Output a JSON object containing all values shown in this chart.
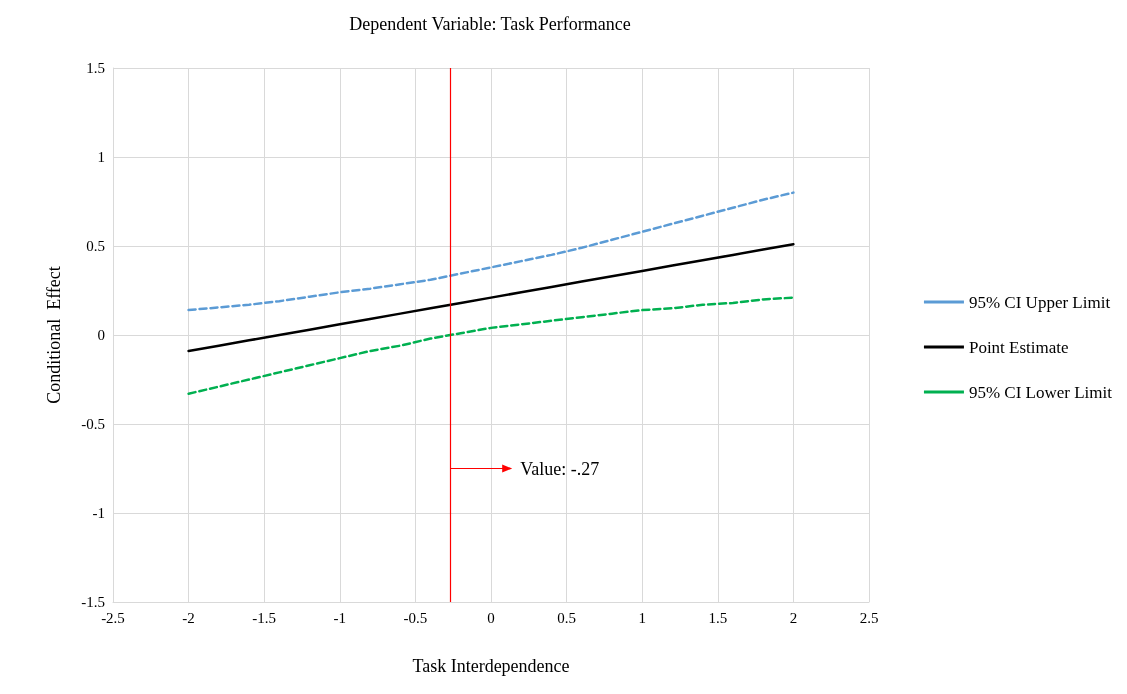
{
  "chart_data": {
    "type": "line",
    "title": "Dependent Variable: Task Performance",
    "xlabel": "Task Interdependence",
    "ylabel": "Conditional  Effect",
    "x": [
      -2,
      -1.8,
      -1.6,
      -1.4,
      -1.2,
      -1,
      -0.8,
      -0.6,
      -0.4,
      -0.2,
      0,
      0.2,
      0.4,
      0.6,
      0.8,
      1,
      1.2,
      1.4,
      1.6,
      1.8,
      2
    ],
    "series": [
      {
        "name": "95% CI Upper Limit",
        "color": "#5b9bd5",
        "line_style": "dashed",
        "values": [
          0.14,
          0.155,
          0.17,
          0.19,
          0.215,
          0.24,
          0.26,
          0.285,
          0.31,
          0.345,
          0.38,
          0.415,
          0.45,
          0.49,
          0.535,
          0.58,
          0.625,
          0.67,
          0.715,
          0.76,
          0.8
        ]
      },
      {
        "name": "Point Estimate",
        "color": "#000000",
        "line_style": "solid",
        "values": [
          -0.09,
          -0.06,
          -0.03,
          0,
          0.03,
          0.06,
          0.09,
          0.12,
          0.15,
          0.18,
          0.21,
          0.24,
          0.27,
          0.3,
          0.33,
          0.36,
          0.39,
          0.42,
          0.45,
          0.48,
          0.51
        ]
      },
      {
        "name": "95% CI Lower Limit",
        "color": "#00b050",
        "line_style": "dashed",
        "values": [
          -0.33,
          -0.29,
          -0.25,
          -0.21,
          -0.17,
          -0.13,
          -0.09,
          -0.06,
          -0.02,
          0.01,
          0.04,
          0.06,
          0.08,
          0.1,
          0.12,
          0.14,
          0.15,
          0.17,
          0.18,
          0.2,
          0.21
        ]
      }
    ],
    "xlim": [
      -2.5,
      2.5
    ],
    "xticks": [
      -2.5,
      -2,
      -1.5,
      -1,
      -0.5,
      0,
      0.5,
      1,
      1.5,
      2,
      2.5
    ],
    "ylim": [
      -1.5,
      1.5
    ],
    "yticks": [
      -1.5,
      -1,
      -0.5,
      0,
      0.5,
      1,
      1.5
    ],
    "ref_lines": [
      {
        "axis": "x",
        "value": -0.27,
        "color": "#ff0000"
      }
    ],
    "annotations": [
      {
        "text": "Value: -.27",
        "x": -0.27,
        "y": -0.75
      }
    ],
    "grid": true,
    "legend": "right",
    "marker": "none"
  }
}
